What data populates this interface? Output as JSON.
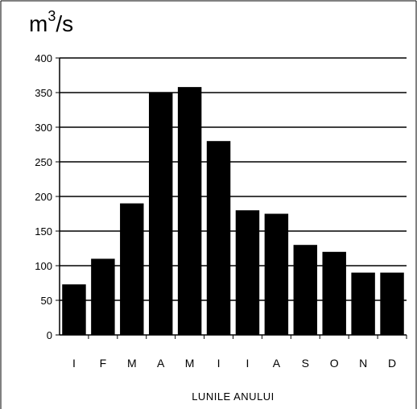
{
  "chart_data": {
    "type": "bar",
    "unit": {
      "base": "m",
      "exp": "3",
      "suffix": "/s"
    },
    "categories": [
      "I",
      "F",
      "M",
      "A",
      "M",
      "I",
      "I",
      "A",
      "S",
      "O",
      "N",
      "D"
    ],
    "values": [
      73,
      110,
      190,
      350,
      358,
      280,
      180,
      175,
      130,
      120,
      90,
      90
    ],
    "xlabel": "LUNILE ANULUI",
    "ylim": [
      0,
      400
    ],
    "yticks": [
      0,
      50,
      100,
      150,
      200,
      250,
      300,
      350,
      400
    ],
    "grid": true,
    "bar_color": "#000000"
  }
}
